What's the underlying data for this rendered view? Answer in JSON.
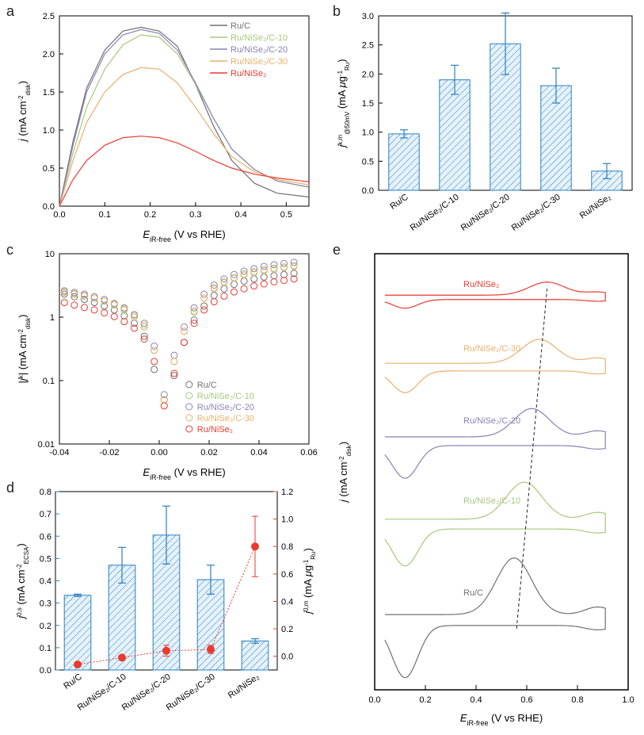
{
  "global": {
    "background": "#ffffff",
    "axis_color": "#000000",
    "tick_fontsize": 11,
    "label_fontsize": 13,
    "panel_label_fontsize": 18
  },
  "samples": [
    {
      "key": "ruc",
      "label": "Ru/C",
      "color": "#707070"
    },
    {
      "key": "c10",
      "label": "Ru/NiSe₂/C-10",
      "color": "#a8c77d"
    },
    {
      "key": "c20",
      "label": "Ru/NiSe₂/C-20",
      "color": "#8b81b5"
    },
    {
      "key": "c30",
      "label": "Ru/NiSe₂/C-30",
      "color": "#e8b06d"
    },
    {
      "key": "nise",
      "label": "Ru/NiSe₂",
      "color": "#ea3a2e"
    }
  ],
  "panel_a": {
    "label": "a",
    "type": "line",
    "xlabel": "E_iR-free (V vs RHE)",
    "ylabel": "j (mA cm⁻²_disk)",
    "xlim": [
      0.0,
      0.55
    ],
    "xticks": [
      0.0,
      0.1,
      0.2,
      0.3,
      0.4,
      0.5
    ],
    "ylim": [
      0.0,
      2.5
    ],
    "yticks": [
      0.0,
      0.5,
      1.0,
      1.5,
      2.0,
      2.5
    ],
    "line_width": 1.2,
    "series": {
      "ruc": [
        [
          0,
          0
        ],
        [
          0.03,
          0.85
        ],
        [
          0.06,
          1.55
        ],
        [
          0.1,
          2.05
        ],
        [
          0.14,
          2.3
        ],
        [
          0.18,
          2.35
        ],
        [
          0.22,
          2.3
        ],
        [
          0.26,
          2.1
        ],
        [
          0.3,
          1.6
        ],
        [
          0.34,
          1.05
        ],
        [
          0.38,
          0.6
        ],
        [
          0.43,
          0.3
        ],
        [
          0.48,
          0.17
        ],
        [
          0.55,
          0.12
        ]
      ],
      "c10": [
        [
          0,
          0
        ],
        [
          0.03,
          0.7
        ],
        [
          0.06,
          1.3
        ],
        [
          0.1,
          1.8
        ],
        [
          0.14,
          2.12
        ],
        [
          0.18,
          2.25
        ],
        [
          0.22,
          2.22
        ],
        [
          0.26,
          2.0
        ],
        [
          0.3,
          1.6
        ],
        [
          0.34,
          1.15
        ],
        [
          0.38,
          0.75
        ],
        [
          0.43,
          0.48
        ],
        [
          0.48,
          0.33
        ],
        [
          0.55,
          0.25
        ]
      ],
      "c20": [
        [
          0,
          0
        ],
        [
          0.03,
          0.8
        ],
        [
          0.06,
          1.5
        ],
        [
          0.1,
          2.0
        ],
        [
          0.14,
          2.25
        ],
        [
          0.18,
          2.32
        ],
        [
          0.22,
          2.27
        ],
        [
          0.26,
          2.05
        ],
        [
          0.3,
          1.62
        ],
        [
          0.34,
          1.15
        ],
        [
          0.38,
          0.75
        ],
        [
          0.43,
          0.48
        ],
        [
          0.48,
          0.33
        ],
        [
          0.55,
          0.25
        ]
      ],
      "c30": [
        [
          0,
          0
        ],
        [
          0.03,
          0.6
        ],
        [
          0.06,
          1.1
        ],
        [
          0.1,
          1.5
        ],
        [
          0.14,
          1.73
        ],
        [
          0.18,
          1.82
        ],
        [
          0.22,
          1.8
        ],
        [
          0.26,
          1.62
        ],
        [
          0.3,
          1.3
        ],
        [
          0.34,
          0.95
        ],
        [
          0.38,
          0.65
        ],
        [
          0.43,
          0.45
        ],
        [
          0.48,
          0.35
        ],
        [
          0.55,
          0.28
        ]
      ],
      "nise": [
        [
          0,
          0
        ],
        [
          0.03,
          0.35
        ],
        [
          0.06,
          0.6
        ],
        [
          0.1,
          0.8
        ],
        [
          0.14,
          0.9
        ],
        [
          0.18,
          0.92
        ],
        [
          0.22,
          0.9
        ],
        [
          0.26,
          0.83
        ],
        [
          0.3,
          0.72
        ],
        [
          0.34,
          0.6
        ],
        [
          0.38,
          0.5
        ],
        [
          0.43,
          0.42
        ],
        [
          0.48,
          0.37
        ],
        [
          0.55,
          0.32
        ]
      ]
    }
  },
  "panel_b": {
    "label": "b",
    "type": "bar",
    "xlabel": "",
    "ylabel": "j^k,m_@50mV (mA μg⁻¹_Ru)",
    "ylim": [
      0.0,
      3.0
    ],
    "yticks": [
      0.0,
      0.5,
      1.0,
      1.5,
      2.0,
      2.5,
      3.0
    ],
    "bar_color": "#6db5e8",
    "bar_border": "#2b7fc0",
    "error_color": "#2b7fc0",
    "bar_width": 0.6,
    "hatch": true,
    "categories": [
      "Ru/C",
      "Ru/NiSe₂/C-10",
      "Ru/NiSe₂/C-20",
      "Ru/NiSe₂/C-30",
      "Ru/NiSe₂"
    ],
    "values": [
      0.97,
      1.9,
      2.52,
      1.8,
      0.33
    ],
    "err": [
      0.07,
      0.25,
      0.53,
      0.3,
      0.13
    ]
  },
  "panel_c": {
    "label": "c",
    "type": "scatter",
    "xlabel": "E_iR-free (V vs RHE)",
    "ylabel": "|j^k| (mA cm⁻²_disk)",
    "xlim": [
      -0.04,
      0.06
    ],
    "xticks": [
      -0.04,
      -0.02,
      0.0,
      0.02,
      0.04,
      0.06
    ],
    "ylim_log": [
      0.01,
      10
    ],
    "yticks_log": [
      0.01,
      0.1,
      1,
      10
    ],
    "marker": "circle",
    "marker_size": 4,
    "marker_fill": "none",
    "marker_stroke_width": 1,
    "xvals": [
      -0.038,
      -0.034,
      -0.03,
      -0.026,
      -0.022,
      -0.018,
      -0.014,
      -0.01,
      -0.006,
      -0.002,
      0.002,
      0.006,
      0.01,
      0.014,
      0.018,
      0.022,
      0.026,
      0.03,
      0.034,
      0.038,
      0.042,
      0.046,
      0.05,
      0.054
    ],
    "series": {
      "ruc": [
        2.3,
        2.1,
        1.9,
        1.7,
        1.5,
        1.3,
        1.05,
        0.8,
        0.5,
        0.15,
        0.05,
        0.12,
        0.4,
        0.9,
        1.5,
        2.2,
        2.8,
        3.3,
        3.7,
        4.0,
        4.3,
        4.5,
        4.7,
        4.9
      ],
      "c10": [
        2.5,
        2.35,
        2.2,
        2.0,
        1.8,
        1.55,
        1.3,
        1.0,
        0.7,
        0.3,
        0.05,
        0.2,
        0.6,
        1.2,
        2.0,
        2.9,
        3.6,
        4.2,
        4.8,
        5.2,
        5.6,
        5.9,
        6.2,
        6.5
      ],
      "c20": [
        2.6,
        2.45,
        2.3,
        2.1,
        1.9,
        1.65,
        1.4,
        1.1,
        0.8,
        0.35,
        0.06,
        0.25,
        0.7,
        1.4,
        2.3,
        3.2,
        4.0,
        4.7,
        5.3,
        5.8,
        6.3,
        6.7,
        7.0,
        7.3
      ],
      "c30": [
        2.45,
        2.3,
        2.15,
        2.0,
        1.8,
        1.6,
        1.35,
        1.05,
        0.75,
        0.3,
        0.05,
        0.2,
        0.6,
        1.25,
        2.0,
        2.8,
        3.5,
        4.1,
        4.6,
        5.0,
        5.4,
        5.7,
        6.0,
        6.3
      ],
      "nise": [
        1.7,
        1.55,
        1.42,
        1.3,
        1.17,
        1.02,
        0.85,
        0.67,
        0.45,
        0.2,
        0.04,
        0.13,
        0.4,
        0.8,
        1.3,
        1.75,
        2.15,
        2.5,
        2.8,
        3.1,
        3.35,
        3.6,
        3.8,
        4.0
      ]
    }
  },
  "panel_d": {
    "label": "d",
    "type": "bar+line",
    "xlabel": "",
    "ylabel_left": "j^0,s (mA cm⁻²_ECSA)",
    "ylabel_right": "j^0,m (mA μg⁻¹_Ru)",
    "ylim_left": [
      0.0,
      0.8
    ],
    "yticks_left": [
      0.0,
      0.1,
      0.2,
      0.3,
      0.4,
      0.5,
      0.6,
      0.7,
      0.8
    ],
    "ylim_right": [
      -0.1,
      1.2
    ],
    "yticks_right": [
      0.0,
      0.2,
      0.4,
      0.6,
      0.8,
      1.0,
      1.2
    ],
    "bar_color": "#6db5e8",
    "bar_border": "#2b7fc0",
    "error_color": "#2b7fc0",
    "bar_width": 0.6,
    "hatch": true,
    "line_color": "#ea3a2e",
    "marker_color": "#ea3a2e",
    "marker_size": 5,
    "line_dash": "2,2",
    "categories": [
      "Ru/C",
      "Ru/NiSe₂/C-10",
      "Ru/NiSe₂/C-20",
      "Ru/NiSe₂/C-30",
      "Ru/NiSe₂"
    ],
    "bar_values": [
      0.335,
      0.47,
      0.605,
      0.405,
      0.13
    ],
    "bar_err": [
      0.005,
      0.08,
      0.13,
      0.065,
      0.01
    ],
    "line_values": [
      -0.06,
      -0.01,
      0.04,
      0.05,
      0.8
    ],
    "line_err": [
      0.0,
      0.015,
      0.04,
      0.03,
      0.22
    ],
    "left_axis_color": "#2b7fc0",
    "right_axis_color": "#ea3a2e"
  },
  "panel_e": {
    "label": "e",
    "type": "cv_stack",
    "xlabel": "E_iR-free (V vs RHE)",
    "ylabel": "j (mA cm⁻²_disk)",
    "xlim": [
      0.0,
      1.0
    ],
    "xticks": [
      0.0,
      0.2,
      0.4,
      0.6,
      0.8,
      1.0
    ],
    "frame_color": "#000000",
    "line_width": 1.2,
    "dashed_line": {
      "x1": 0.56,
      "y1": 0.14,
      "x2": 0.68,
      "y2": 0.92,
      "dash": "4,3",
      "color": "#222222"
    },
    "stack": [
      {
        "key": "nise",
        "label": "Ru/NiSe₂",
        "y_center": 0.9,
        "amp": 0.02,
        "peak_x": 0.68,
        "peak_h": 0.03,
        "hpeak_x": 0.12,
        "hpeak_h": 0.02
      },
      {
        "key": "c30",
        "label": "Ru/NiSe₂/C-30",
        "y_center": 0.74,
        "amp": 0.035,
        "peak_x": 0.65,
        "peak_h": 0.055,
        "hpeak_x": 0.12,
        "hpeak_h": 0.05
      },
      {
        "key": "c20",
        "label": "Ru/NiSe₂/C-20",
        "y_center": 0.57,
        "amp": 0.04,
        "peak_x": 0.62,
        "peak_h": 0.065,
        "hpeak_x": 0.12,
        "hpeak_h": 0.075
      },
      {
        "key": "c10",
        "label": "Ru/NiSe₂/C-10",
        "y_center": 0.38,
        "amp": 0.045,
        "peak_x": 0.59,
        "peak_h": 0.085,
        "hpeak_x": 0.12,
        "hpeak_h": 0.085
      },
      {
        "key": "ruc",
        "label": "Ru/C",
        "y_center": 0.16,
        "amp": 0.05,
        "peak_x": 0.55,
        "peak_h": 0.13,
        "hpeak_x": 0.12,
        "hpeak_h": 0.12
      }
    ]
  }
}
